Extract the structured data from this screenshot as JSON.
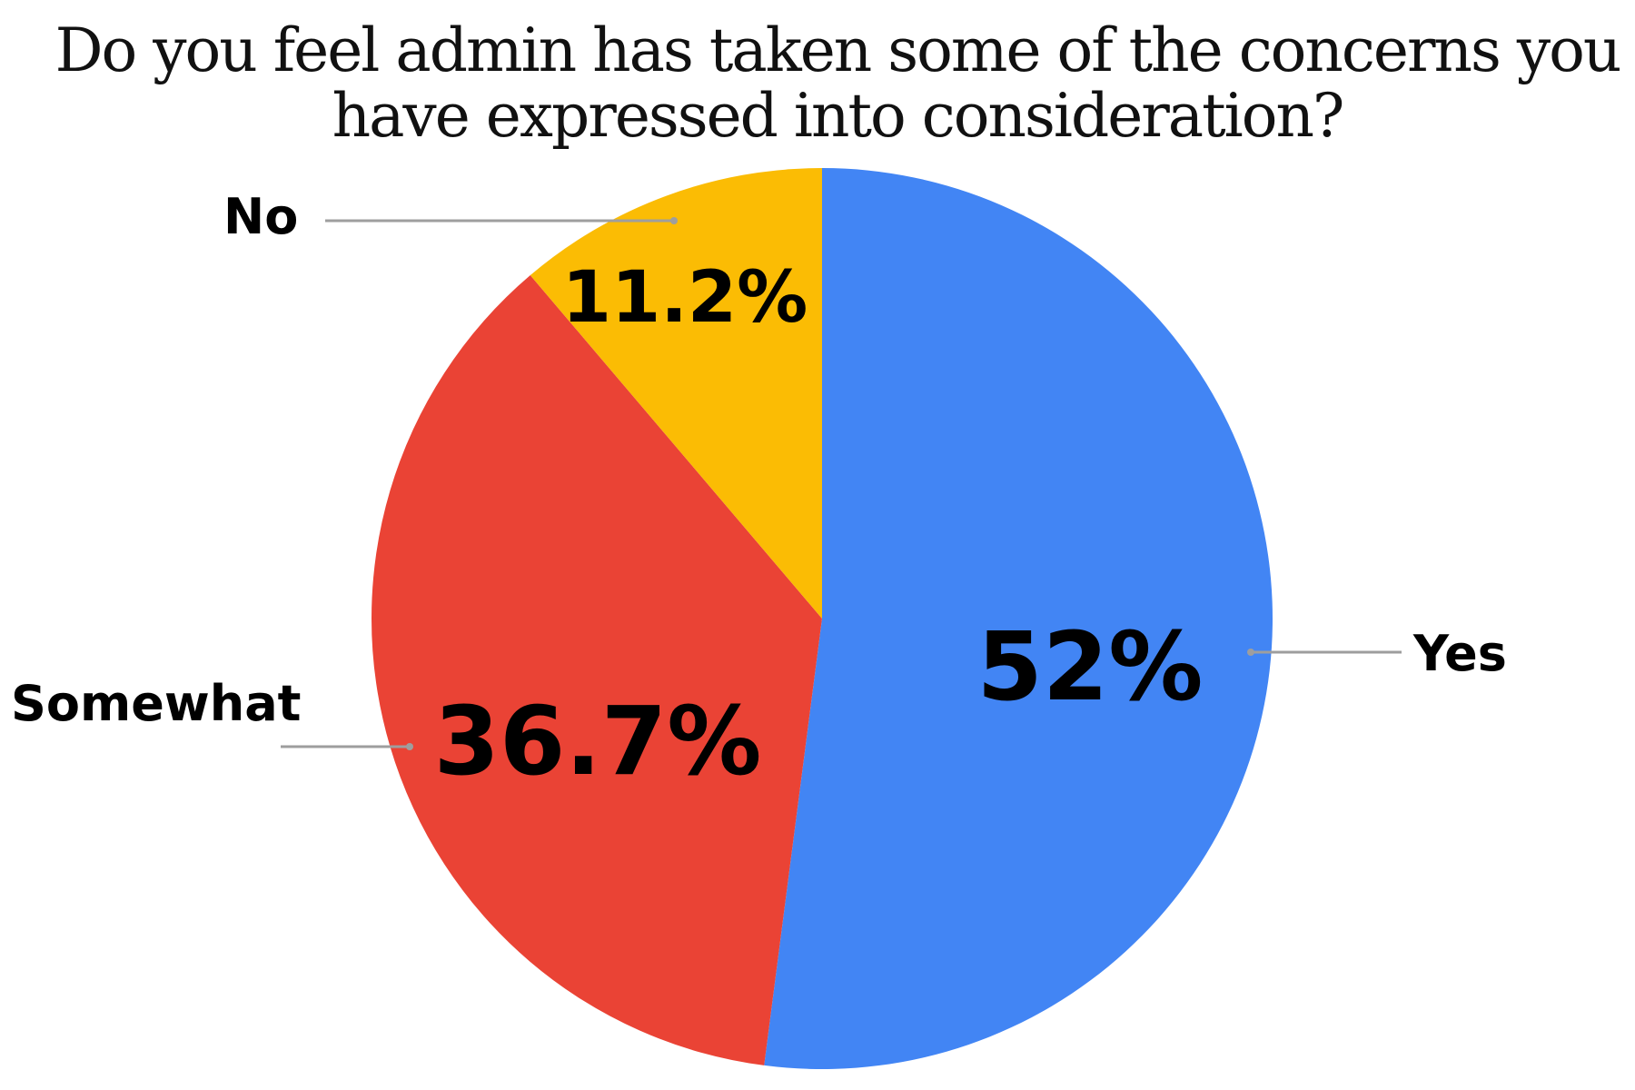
{
  "chart_data": {
    "type": "pie",
    "title_lines": [
      "Do you feel admin has taken some of the concerns you",
      "have expressed into consideration?"
    ],
    "categories": [
      "Yes",
      "Somewhat",
      "No"
    ],
    "values": [
      52,
      36.7,
      11.2
    ],
    "data_labels": [
      "52%",
      "36.7%",
      "11.2%"
    ],
    "colors": [
      "#4285F4",
      "#EA4335",
      "#FBBC04"
    ],
    "start_angle": "top, clockwise",
    "legend": "none (leader-line labels)"
  }
}
